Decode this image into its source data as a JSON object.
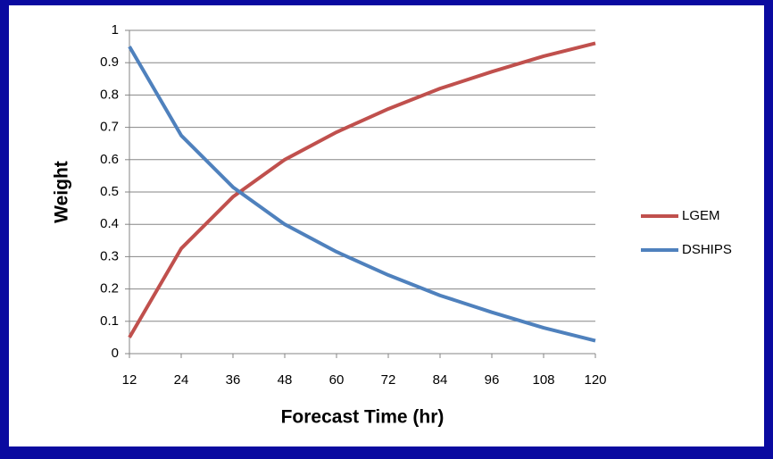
{
  "chart_data": {
    "type": "line",
    "x": [
      12,
      24,
      36,
      48,
      60,
      72,
      84,
      96,
      108,
      120
    ],
    "series": [
      {
        "name": "LGEM",
        "color": "#c0504d",
        "values": [
          0.05,
          0.325,
          0.485,
          0.6,
          0.685,
          0.757,
          0.82,
          0.872,
          0.92,
          0.96
        ]
      },
      {
        "name": "DSHIPS",
        "color": "#4f81bd",
        "values": [
          0.95,
          0.675,
          0.515,
          0.4,
          0.315,
          0.243,
          0.18,
          0.128,
          0.08,
          0.04
        ]
      }
    ],
    "xlabel": "Forecast Time (hr)",
    "ylabel": "Weight",
    "xlim": [
      12,
      120
    ],
    "xticks": [
      12,
      24,
      36,
      48,
      60,
      72,
      84,
      96,
      108,
      120
    ],
    "ylim": [
      0,
      1
    ],
    "yticks": [
      0,
      0.1,
      0.2,
      0.3,
      0.4,
      0.5,
      0.6,
      0.7,
      0.8,
      0.9,
      1
    ],
    "grid": true,
    "legend": "right"
  }
}
